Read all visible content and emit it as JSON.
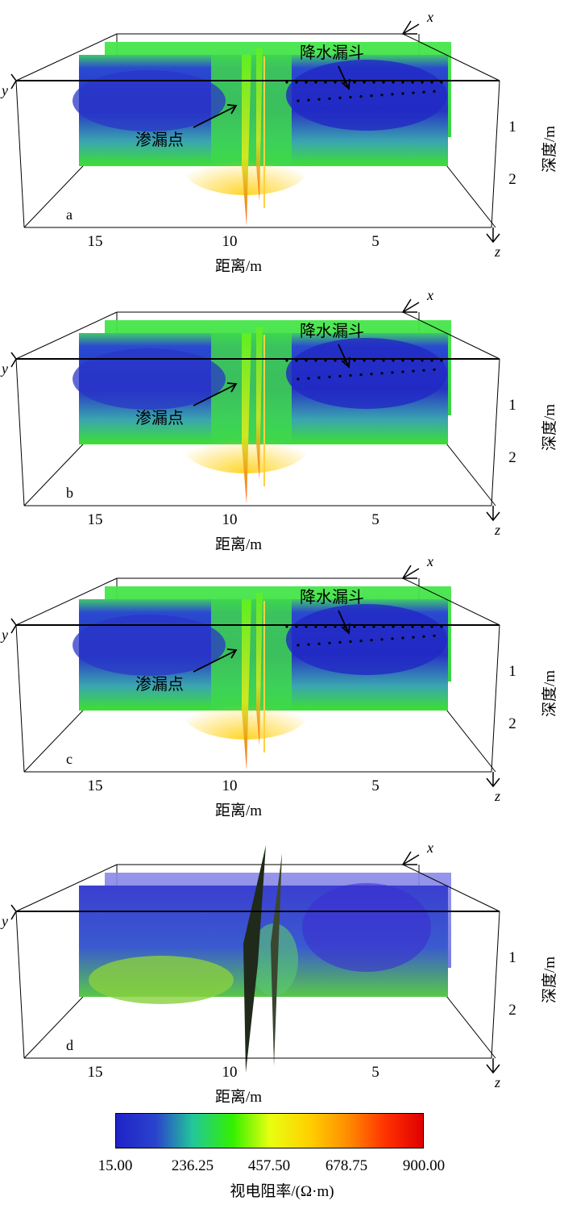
{
  "colors": {
    "stops": [
      "#1f22c8",
      "#2a44cc",
      "#22c79a",
      "#33f000",
      "#e8ff10",
      "#ffd000",
      "#ff9000",
      "#ff3000",
      "#e00000"
    ],
    "box_line": "#000000"
  },
  "chart_data": [
    {
      "id": "a",
      "type": "heatmap",
      "panel_label": "a",
      "axis_labels": {
        "x": "x",
        "y": "y",
        "z": "z"
      },
      "x_ticks": [
        "15",
        "10",
        "5"
      ],
      "x_title": "距离/m",
      "depth_ticks": [
        "1",
        "2"
      ],
      "depth_title": "深度/m",
      "annotations": {
        "funnel": "降水漏斗",
        "leak": "渗漏点"
      },
      "style": "profile"
    },
    {
      "id": "b",
      "type": "heatmap",
      "panel_label": "b",
      "axis_labels": {
        "x": "x",
        "y": "y",
        "z": "z"
      },
      "x_ticks": [
        "15",
        "10",
        "5"
      ],
      "x_title": "距离/m",
      "depth_ticks": [
        "1",
        "2"
      ],
      "depth_title": "深度/m",
      "annotations": {
        "funnel": "降水漏斗",
        "leak": "渗漏点"
      },
      "style": "profile"
    },
    {
      "id": "c",
      "type": "heatmap",
      "panel_label": "c",
      "axis_labels": {
        "x": "x",
        "y": "y",
        "z": "z"
      },
      "x_ticks": [
        "15",
        "10",
        "5"
      ],
      "x_title": "距离/m",
      "depth_ticks": [
        "1",
        "2"
      ],
      "depth_title": "深度/m",
      "annotations": {
        "funnel": "降水漏斗",
        "leak": "渗漏点"
      },
      "style": "profile"
    },
    {
      "id": "d",
      "type": "heatmap",
      "panel_label": "d",
      "axis_labels": {
        "x": "x",
        "y": "y",
        "z": "z"
      },
      "x_ticks": [
        "15",
        "10",
        "5"
      ],
      "x_title": "距离/m",
      "depth_ticks": [
        "1",
        "2"
      ],
      "depth_title": "深度/m",
      "annotations": {
        "funnel": "",
        "leak": ""
      },
      "style": "smooth"
    }
  ],
  "colorbar": {
    "ticks": [
      "15.00",
      "236.25",
      "457.50",
      "678.75",
      "900.00"
    ],
    "values": [
      15.0,
      236.25,
      457.5,
      678.75,
      900.0
    ],
    "range": [
      15.0,
      900.0
    ],
    "title": "视电阻率/(Ω·m)"
  }
}
